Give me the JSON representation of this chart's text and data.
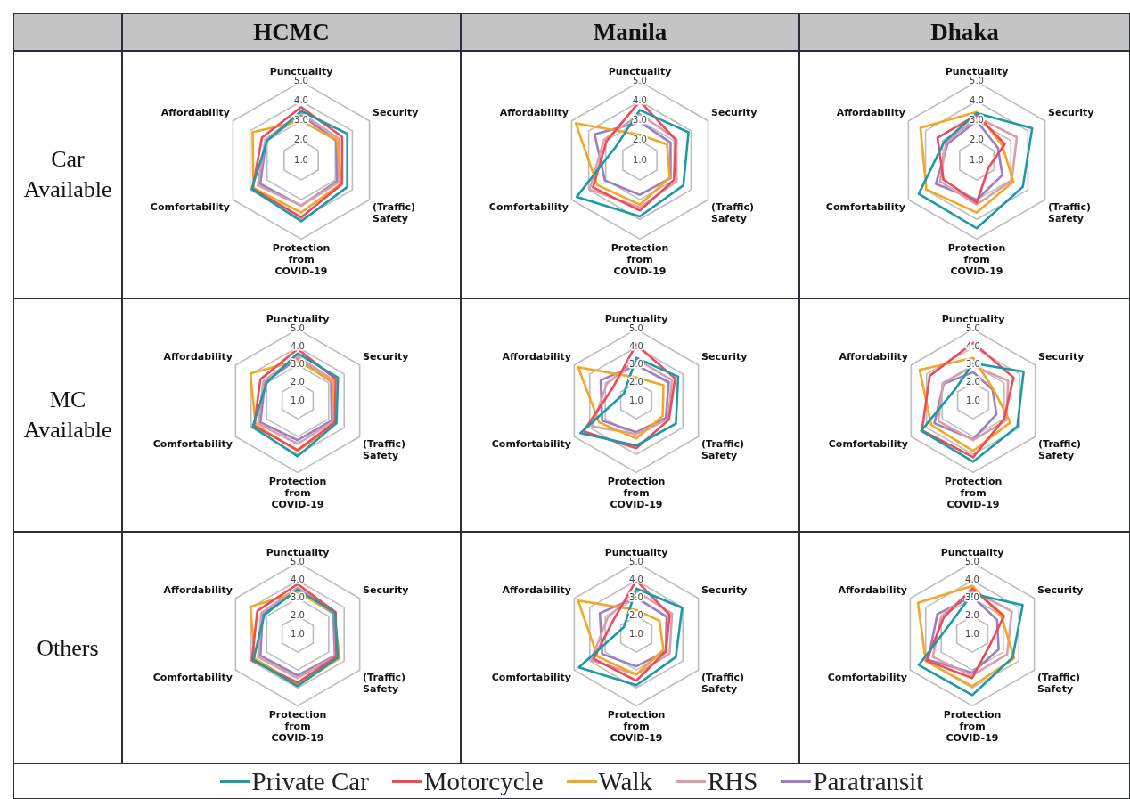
{
  "chart_data": [
    {
      "type": "radar",
      "title": "HCMC",
      "ylabel": "Car Available",
      "categories": [
        "Punctuality",
        "Security",
        "(Traffic) Safety",
        "Protection from COVID-19",
        "Comfortability",
        "Affordability"
      ],
      "ylim": [
        1,
        5
      ],
      "yticks": [
        {
          "value": 1,
          "label": "1.0"
        },
        {
          "value": 2,
          "label": "2.0"
        },
        {
          "value": 3,
          "label": "3.0"
        },
        {
          "value": 4,
          "label": "4.0"
        },
        {
          "value": 5,
          "label": "5.0"
        }
      ],
      "grid": true,
      "marker": "none",
      "legend": "bottom",
      "series": [
        {
          "name": "Private Car",
          "color": "#1a9ba6",
          "values": [
            3.5,
            3.7,
            3.7,
            4.1,
            3.9,
            3.0
          ]
        },
        {
          "name": "Motorcycle",
          "color": "#ef4a5a",
          "values": [
            3.7,
            3.4,
            3.4,
            3.9,
            3.85,
            3.3
          ]
        },
        {
          "name": "Walk",
          "color": "#f5a623",
          "values": [
            3.0,
            3.1,
            3.35,
            3.65,
            3.8,
            3.85
          ]
        },
        {
          "name": "RHS",
          "color": "#d9a0ac",
          "values": [
            3.4,
            3.2,
            3.2,
            3.3,
            3.55,
            3.1
          ]
        },
        {
          "name": "Paratransit",
          "color": "#9b7fc4",
          "values": [
            3.3,
            3.05,
            3.1,
            3.3,
            3.4,
            3.05
          ]
        }
      ]
    },
    {
      "type": "radar",
      "title": "Manila",
      "categories": [
        "Punctuality",
        "Security",
        "(Traffic) Safety",
        "Protection from COVID-19",
        "Comfortability",
        "Affordability"
      ],
      "ylim": [
        1,
        5
      ],
      "yticks": [
        {
          "value": 1,
          "label": "1.0"
        },
        {
          "value": 2,
          "label": "2.0"
        },
        {
          "value": 3,
          "label": "3.0"
        },
        {
          "value": 4,
          "label": "4.0"
        },
        {
          "value": 5,
          "label": "5.0"
        }
      ],
      "grid": true,
      "marker": "none",
      "series": [
        {
          "color": "#1a9ba6",
          "values": [
            3.55,
            3.85,
            3.55,
            3.85,
            4.7,
            2.4
          ]
        },
        {
          "color": "#ef4a5a",
          "values": [
            4.0,
            3.1,
            3.0,
            3.55,
            3.75,
            2.95
          ]
        },
        {
          "color": "#f5a623",
          "values": [
            2.3,
            2.6,
            2.75,
            3.25,
            3.5,
            4.75
          ]
        },
        {
          "color": "#d9a0ac",
          "values": [
            3.35,
            3.15,
            3.15,
            3.4,
            3.95,
            3.1
          ]
        },
        {
          "color": "#9b7fc4",
          "values": [
            2.95,
            2.8,
            2.8,
            2.75,
            3.05,
            3.65
          ]
        }
      ]
    },
    {
      "type": "radar",
      "title": "Dhaka",
      "categories": [
        "Punctuality",
        "Security",
        "(Traffic) Safety",
        "Protection from COVID-19",
        "Comfortability",
        "Affordability"
      ],
      "ylim": [
        1,
        5
      ],
      "yticks": [
        {
          "value": 1,
          "label": "1.0"
        },
        {
          "value": 2,
          "label": "2.0"
        },
        {
          "value": 3,
          "label": "3.0"
        },
        {
          "value": 4,
          "label": "4.0"
        },
        {
          "value": 5,
          "label": "5.0"
        }
      ],
      "grid": true,
      "marker": "none",
      "series": [
        {
          "color": "#1a9ba6",
          "values": [
            3.4,
            4.25,
            3.7,
            4.45,
            4.4,
            2.9
          ]
        },
        {
          "color": "#ef4a5a",
          "values": [
            3.3,
            2.65,
            1.7,
            3.15,
            2.95,
            3.3
          ]
        },
        {
          "color": "#f5a623",
          "values": [
            3.45,
            2.5,
            3.15,
            3.65,
            3.95,
            4.3
          ]
        },
        {
          "color": "#d9a0ac",
          "values": [
            3.2,
            3.35,
            3.05,
            3.25,
            3.15,
            2.8
          ]
        },
        {
          "color": "#9b7fc4",
          "values": [
            3.0,
            2.25,
            2.5,
            3.0,
            3.4,
            2.7
          ]
        }
      ]
    },
    {
      "type": "radar",
      "ylabel": "MC Available",
      "categories": [
        "Punctuality",
        "Security",
        "(Traffic) Safety",
        "Protection from COVID-19",
        "Comfortability",
        "Affordability"
      ],
      "ylim": [
        1,
        5
      ],
      "yticks": [
        {
          "value": 1,
          "label": "1.0"
        },
        {
          "value": 2,
          "label": "2.0"
        },
        {
          "value": 3,
          "label": "3.0"
        },
        {
          "value": 4,
          "label": "4.0"
        },
        {
          "value": 5,
          "label": "5.0"
        }
      ],
      "grid": true,
      "marker": "none",
      "series": [
        {
          "color": "#1a9ba6",
          "values": [
            3.65,
            3.6,
            3.5,
            4.1,
            3.9,
            3.0
          ]
        },
        {
          "color": "#ef4a5a",
          "values": [
            3.9,
            3.45,
            3.4,
            3.75,
            3.8,
            3.4
          ]
        },
        {
          "color": "#f5a623",
          "values": [
            3.25,
            3.2,
            3.5,
            3.8,
            3.7,
            4.05
          ]
        },
        {
          "color": "#d9a0ac",
          "values": [
            3.5,
            3.3,
            3.3,
            3.4,
            3.55,
            3.2
          ]
        },
        {
          "color": "#9b7fc4",
          "values": [
            3.35,
            3.15,
            3.2,
            3.2,
            3.4,
            3.1
          ]
        }
      ]
    },
    {
      "type": "radar",
      "categories": [
        "Punctuality",
        "Security",
        "(Traffic) Safety",
        "Protection from COVID-19",
        "Comfortability",
        "Affordability"
      ],
      "ylim": [
        1,
        5
      ],
      "yticks": [
        {
          "value": 1,
          "label": "1.0"
        },
        {
          "value": 2,
          "label": "2.0"
        },
        {
          "value": 3,
          "label": "3.0"
        },
        {
          "value": 4,
          "label": "4.0"
        },
        {
          "value": 5,
          "label": "5.0"
        }
      ],
      "grid": true,
      "marker": "none",
      "series": [
        {
          "color": "#1a9ba6",
          "values": [
            3.4,
            3.7,
            3.55,
            3.5,
            4.6,
            1.8
          ]
        },
        {
          "color": "#ef4a5a",
          "values": [
            4.15,
            3.5,
            3.1,
            3.65,
            4.4,
            2.5
          ]
        },
        {
          "color": "#f5a623",
          "values": [
            2.3,
            2.75,
            2.7,
            3.1,
            3.4,
            4.75
          ]
        },
        {
          "color": "#d9a0ac",
          "values": [
            3.35,
            3.3,
            3.05,
            2.85,
            3.85,
            2.9
          ]
        },
        {
          "color": "#9b7fc4",
          "values": [
            3.0,
            3.1,
            2.9,
            2.75,
            3.2,
            3.3
          ]
        }
      ]
    },
    {
      "type": "radar",
      "categories": [
        "Punctuality",
        "Security",
        "(Traffic) Safety",
        "Protection from COVID-19",
        "Comfortability",
        "Affordability"
      ],
      "ylim": [
        1,
        5
      ],
      "yticks": [
        {
          "value": 1,
          "label": "1.0"
        },
        {
          "value": 2,
          "label": "2.0"
        },
        {
          "value": 3,
          "label": "3.0"
        },
        {
          "value": 4,
          "label": "4.0"
        },
        {
          "value": 5,
          "label": "5.0"
        }
      ],
      "grid": true,
      "marker": "none",
      "series": [
        {
          "color": "#1a9ba6",
          "values": [
            3.1,
            4.25,
            3.85,
            4.4,
            4.35,
            2.2
          ]
        },
        {
          "color": "#ef4a5a",
          "values": [
            4.25,
            3.6,
            3.0,
            4.15,
            4.3,
            3.8
          ]
        },
        {
          "color": "#f5a623",
          "values": [
            3.4,
            2.3,
            3.4,
            3.8,
            3.7,
            4.45
          ]
        },
        {
          "color": "#d9a0ac",
          "values": [
            2.95,
            3.25,
            3.15,
            3.2,
            3.25,
            2.95
          ]
        },
        {
          "color": "#9b7fc4",
          "values": [
            2.6,
            2.25,
            2.5,
            3.15,
            3.5,
            2.9
          ]
        }
      ]
    },
    {
      "type": "radar",
      "ylabel": "Others",
      "categories": [
        "Punctuality",
        "Security",
        "(Traffic) Safety",
        "Protection from COVID-19",
        "Comfortability",
        "Affordability"
      ],
      "ylim": [
        1,
        5
      ],
      "yticks": [
        {
          "value": 1,
          "label": "1.0"
        },
        {
          "value": 2,
          "label": "2.0"
        },
        {
          "value": 3,
          "label": "3.0"
        },
        {
          "value": 4,
          "label": "4.0"
        },
        {
          "value": 5,
          "label": "5.0"
        }
      ],
      "grid": true,
      "marker": "none",
      "series": [
        {
          "color": "#1a9ba6",
          "values": [
            3.5,
            3.4,
            3.6,
            3.9,
            3.85,
            3.15
          ]
        },
        {
          "color": "#ef4a5a",
          "values": [
            3.8,
            3.45,
            3.5,
            3.7,
            3.95,
            3.6
          ]
        },
        {
          "color": "#f5a623",
          "values": [
            3.35,
            3.35,
            3.7,
            3.8,
            3.75,
            4.05
          ]
        },
        {
          "color": "#d9a0ac",
          "values": [
            3.6,
            3.45,
            3.45,
            3.45,
            3.55,
            3.35
          ]
        },
        {
          "color": "#9b7fc4",
          "values": [
            3.45,
            3.3,
            3.4,
            3.3,
            3.4,
            3.25
          ]
        }
      ]
    },
    {
      "type": "radar",
      "categories": [
        "Punctuality",
        "Security",
        "(Traffic) Safety",
        "Protection from COVID-19",
        "Comfortability",
        "Affordability"
      ],
      "ylim": [
        1,
        5
      ],
      "yticks": [
        {
          "value": 1,
          "label": "1.0"
        },
        {
          "value": 2,
          "label": "2.0"
        },
        {
          "value": 3,
          "label": "3.0"
        },
        {
          "value": 4,
          "label": "4.0"
        },
        {
          "value": 5,
          "label": "5.0"
        }
      ],
      "grid": true,
      "marker": "none",
      "series": [
        {
          "color": "#1a9ba6",
          "values": [
            3.55,
            3.95,
            3.55,
            3.85,
            4.7,
            1.8
          ]
        },
        {
          "color": "#ef4a5a",
          "values": [
            4.0,
            3.15,
            2.9,
            3.6,
            3.75,
            2.5
          ]
        },
        {
          "color": "#f5a623",
          "values": [
            2.35,
            2.5,
            2.75,
            3.25,
            3.5,
            4.75
          ]
        },
        {
          "color": "#d9a0ac",
          "values": [
            3.4,
            3.3,
            3.15,
            3.25,
            3.9,
            2.85
          ]
        },
        {
          "color": "#9b7fc4",
          "values": [
            3.05,
            2.95,
            2.9,
            2.8,
            3.2,
            3.35
          ]
        }
      ]
    },
    {
      "type": "radar",
      "categories": [
        "Punctuality",
        "Security",
        "(Traffic) Safety",
        "Protection from COVID-19",
        "Comfortability",
        "Affordability"
      ],
      "ylim": [
        1,
        5
      ],
      "yticks": [
        {
          "value": 1,
          "label": "1.0"
        },
        {
          "value": 2,
          "label": "2.0"
        },
        {
          "value": 3,
          "label": "3.0"
        },
        {
          "value": 4,
          "label": "4.0"
        },
        {
          "value": 5,
          "label": "5.0"
        }
      ],
      "grid": true,
      "marker": "none",
      "series": [
        {
          "color": "#1a9ba6",
          "values": [
            3.25,
            4.25,
            3.6,
            4.4,
            4.45,
            2.35
          ]
        },
        {
          "color": "#ef4a5a",
          "values": [
            3.55,
            3.05,
            2.15,
            3.45,
            3.95,
            2.85
          ]
        },
        {
          "color": "#f5a623",
          "values": [
            3.7,
            2.9,
            3.7,
            3.9,
            4.0,
            4.5
          ]
        },
        {
          "color": "#d9a0ac",
          "values": [
            3.45,
            3.55,
            3.25,
            3.3,
            3.55,
            3.0
          ]
        },
        {
          "color": "#9b7fc4",
          "values": [
            3.1,
            2.6,
            2.7,
            3.15,
            3.85,
            3.25
          ]
        }
      ]
    }
  ]
}
